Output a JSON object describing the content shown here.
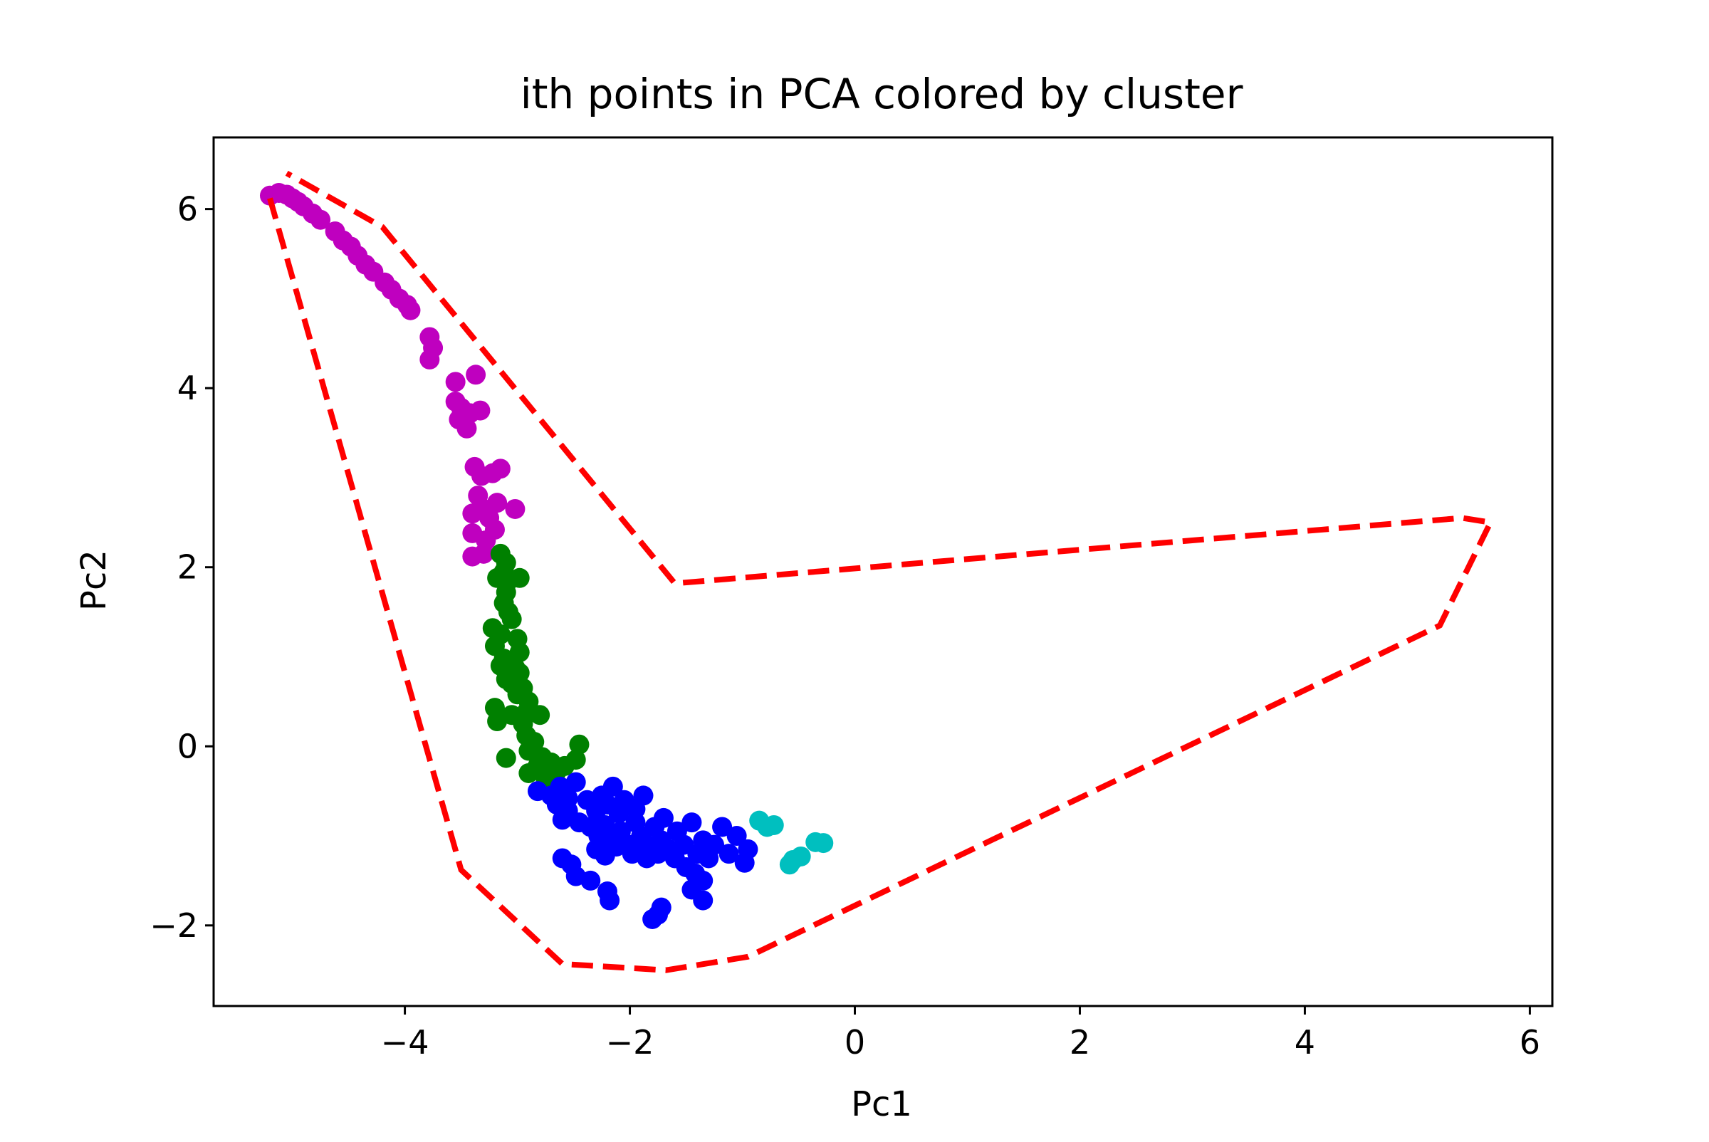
{
  "chart_data": {
    "type": "scatter",
    "title": "ith points in PCA colored by cluster",
    "xlabel": "Pc1",
    "ylabel": "Pc2",
    "xlim": [
      -5.7,
      6.2
    ],
    "ylim": [
      -2.9,
      6.8
    ],
    "xticks": [
      -4,
      -2,
      0,
      2,
      4,
      6
    ],
    "xtick_labels": [
      "−4",
      "−2",
      "0",
      "2",
      "4",
      "6"
    ],
    "yticks": [
      -2,
      0,
      2,
      4,
      6
    ],
    "ytick_labels": [
      "−2",
      "0",
      "2",
      "4",
      "6"
    ],
    "grid": false,
    "legend": "none",
    "series": [
      {
        "color": "#bf00bf",
        "points": [
          [
            -5.2,
            6.15
          ],
          [
            -5.12,
            6.18
          ],
          [
            -5.05,
            6.16
          ],
          [
            -5.0,
            6.12
          ],
          [
            -4.95,
            6.08
          ],
          [
            -4.9,
            6.03
          ],
          [
            -4.82,
            5.95
          ],
          [
            -4.75,
            5.88
          ],
          [
            -4.62,
            5.75
          ],
          [
            -4.55,
            5.65
          ],
          [
            -4.48,
            5.58
          ],
          [
            -4.42,
            5.48
          ],
          [
            -4.35,
            5.38
          ],
          [
            -4.28,
            5.3
          ],
          [
            -4.18,
            5.18
          ],
          [
            -4.12,
            5.1
          ],
          [
            -4.05,
            5.0
          ],
          [
            -3.98,
            4.93
          ],
          [
            -3.95,
            4.87
          ],
          [
            -3.78,
            4.57
          ],
          [
            -3.75,
            4.45
          ],
          [
            -3.78,
            4.32
          ],
          [
            -3.55,
            4.07
          ],
          [
            -3.55,
            3.85
          ],
          [
            -3.5,
            3.78
          ],
          [
            -3.52,
            3.65
          ],
          [
            -3.45,
            3.55
          ],
          [
            -3.42,
            3.72
          ],
          [
            -3.37,
            4.15
          ],
          [
            -3.33,
            3.75
          ],
          [
            -3.38,
            3.12
          ],
          [
            -3.32,
            3.02
          ],
          [
            -3.22,
            3.05
          ],
          [
            -3.15,
            3.1
          ],
          [
            -3.35,
            2.8
          ],
          [
            -3.3,
            2.65
          ],
          [
            -3.4,
            2.6
          ],
          [
            -3.25,
            2.55
          ],
          [
            -3.18,
            2.72
          ],
          [
            -3.02,
            2.65
          ],
          [
            -3.2,
            2.42
          ],
          [
            -3.4,
            2.38
          ],
          [
            -3.28,
            2.3
          ],
          [
            -3.4,
            2.12
          ],
          [
            -3.3,
            2.15
          ]
        ]
      },
      {
        "color": "#008000",
        "points": [
          [
            -3.15,
            2.15
          ],
          [
            -3.1,
            2.05
          ],
          [
            -3.12,
            1.95
          ],
          [
            -3.18,
            1.88
          ],
          [
            -3.08,
            1.85
          ],
          [
            -2.98,
            1.88
          ],
          [
            -3.1,
            1.72
          ],
          [
            -3.12,
            1.6
          ],
          [
            -3.08,
            1.5
          ],
          [
            -3.05,
            1.42
          ],
          [
            -3.22,
            1.32
          ],
          [
            -3.15,
            1.25
          ],
          [
            -3.0,
            1.2
          ],
          [
            -3.2,
            1.12
          ],
          [
            -2.98,
            1.05
          ],
          [
            -3.12,
            0.98
          ],
          [
            -3.15,
            0.9
          ],
          [
            -3.02,
            0.88
          ],
          [
            -2.98,
            0.82
          ],
          [
            -3.1,
            0.75
          ],
          [
            -3.05,
            0.7
          ],
          [
            -2.95,
            0.65
          ],
          [
            -3.0,
            0.58
          ],
          [
            -2.9,
            0.5
          ],
          [
            -3.2,
            0.43
          ],
          [
            -3.05,
            0.35
          ],
          [
            -2.92,
            0.38
          ],
          [
            -2.8,
            0.35
          ],
          [
            -3.18,
            0.28
          ],
          [
            -2.95,
            0.25
          ],
          [
            -2.92,
            0.12
          ],
          [
            -2.85,
            0.05
          ],
          [
            -2.9,
            -0.05
          ],
          [
            -2.78,
            -0.12
          ],
          [
            -3.1,
            -0.13
          ],
          [
            -2.82,
            -0.22
          ],
          [
            -2.7,
            -0.18
          ],
          [
            -2.9,
            -0.3
          ],
          [
            -2.75,
            -0.35
          ],
          [
            -2.65,
            -0.28
          ],
          [
            -2.58,
            -0.22
          ],
          [
            -2.48,
            -0.15
          ],
          [
            -2.45,
            0.02
          ]
        ]
      },
      {
        "color": "#0000ff",
        "points": [
          [
            -2.82,
            -0.5
          ],
          [
            -2.7,
            -0.55
          ],
          [
            -2.62,
            -0.45
          ],
          [
            -2.55,
            -0.58
          ],
          [
            -2.48,
            -0.4
          ],
          [
            -2.65,
            -0.65
          ],
          [
            -2.55,
            -0.72
          ],
          [
            -2.6,
            -0.82
          ],
          [
            -2.45,
            -0.85
          ],
          [
            -2.38,
            -0.6
          ],
          [
            -2.3,
            -0.72
          ],
          [
            -2.25,
            -0.55
          ],
          [
            -2.2,
            -0.65
          ],
          [
            -2.15,
            -0.45
          ],
          [
            -2.1,
            -0.75
          ],
          [
            -2.05,
            -0.6
          ],
          [
            -1.95,
            -0.7
          ],
          [
            -1.88,
            -0.55
          ],
          [
            -2.35,
            -0.9
          ],
          [
            -2.28,
            -1.0
          ],
          [
            -2.22,
            -0.88
          ],
          [
            -2.15,
            -1.05
          ],
          [
            -2.08,
            -0.95
          ],
          [
            -2.0,
            -1.1
          ],
          [
            -1.95,
            -0.85
          ],
          [
            -1.9,
            -1.0
          ],
          [
            -1.85,
            -1.1
          ],
          [
            -1.78,
            -0.9
          ],
          [
            -1.72,
            -1.05
          ],
          [
            -1.7,
            -0.8
          ],
          [
            -1.65,
            -1.15
          ],
          [
            -1.58,
            -0.95
          ],
          [
            -1.52,
            -1.1
          ],
          [
            -1.45,
            -0.85
          ],
          [
            -1.4,
            -1.2
          ],
          [
            -1.35,
            -1.05
          ],
          [
            -1.3,
            -1.25
          ],
          [
            -1.25,
            -1.1
          ],
          [
            -1.18,
            -0.9
          ],
          [
            -1.12,
            -1.2
          ],
          [
            -1.05,
            -1.0
          ],
          [
            -0.98,
            -1.3
          ],
          [
            -0.95,
            -1.15
          ],
          [
            -2.3,
            -1.15
          ],
          [
            -2.22,
            -1.22
          ],
          [
            -2.12,
            -1.12
          ],
          [
            -1.98,
            -1.2
          ],
          [
            -1.85,
            -1.25
          ],
          [
            -1.75,
            -1.2
          ],
          [
            -1.6,
            -1.25
          ],
          [
            -1.5,
            -1.35
          ],
          [
            -1.42,
            -1.42
          ],
          [
            -1.35,
            -1.5
          ],
          [
            -1.45,
            -1.6
          ],
          [
            -1.35,
            -1.72
          ],
          [
            -2.6,
            -1.25
          ],
          [
            -2.52,
            -1.32
          ],
          [
            -2.48,
            -1.45
          ],
          [
            -2.35,
            -1.5
          ],
          [
            -2.2,
            -1.62
          ],
          [
            -2.18,
            -1.72
          ],
          [
            -1.72,
            -1.8
          ],
          [
            -1.75,
            -1.88
          ],
          [
            -1.8,
            -1.93
          ]
        ]
      },
      {
        "color": "#00bfbf",
        "points": [
          [
            -0.85,
            -0.83
          ],
          [
            -0.78,
            -0.9
          ],
          [
            -0.72,
            -0.88
          ],
          [
            -0.35,
            -1.07
          ],
          [
            -0.28,
            -1.08
          ],
          [
            -0.48,
            -1.23
          ],
          [
            -0.55,
            -1.27
          ],
          [
            -0.58,
            -1.32
          ]
        ]
      }
    ],
    "boundary": {
      "color": "#ff0000",
      "style": "dashed",
      "points": [
        [
          -5.2,
          6.12
        ],
        [
          -3.5,
          -1.38
        ],
        [
          -2.6,
          -2.43
        ],
        [
          -1.68,
          -2.5
        ],
        [
          -0.95,
          -2.35
        ],
        [
          5.2,
          1.35
        ],
        [
          5.65,
          2.5
        ],
        [
          5.4,
          2.55
        ],
        [
          -1.6,
          1.82
        ],
        [
          -4.2,
          5.8
        ],
        [
          -5.05,
          6.4
        ]
      ]
    }
  }
}
